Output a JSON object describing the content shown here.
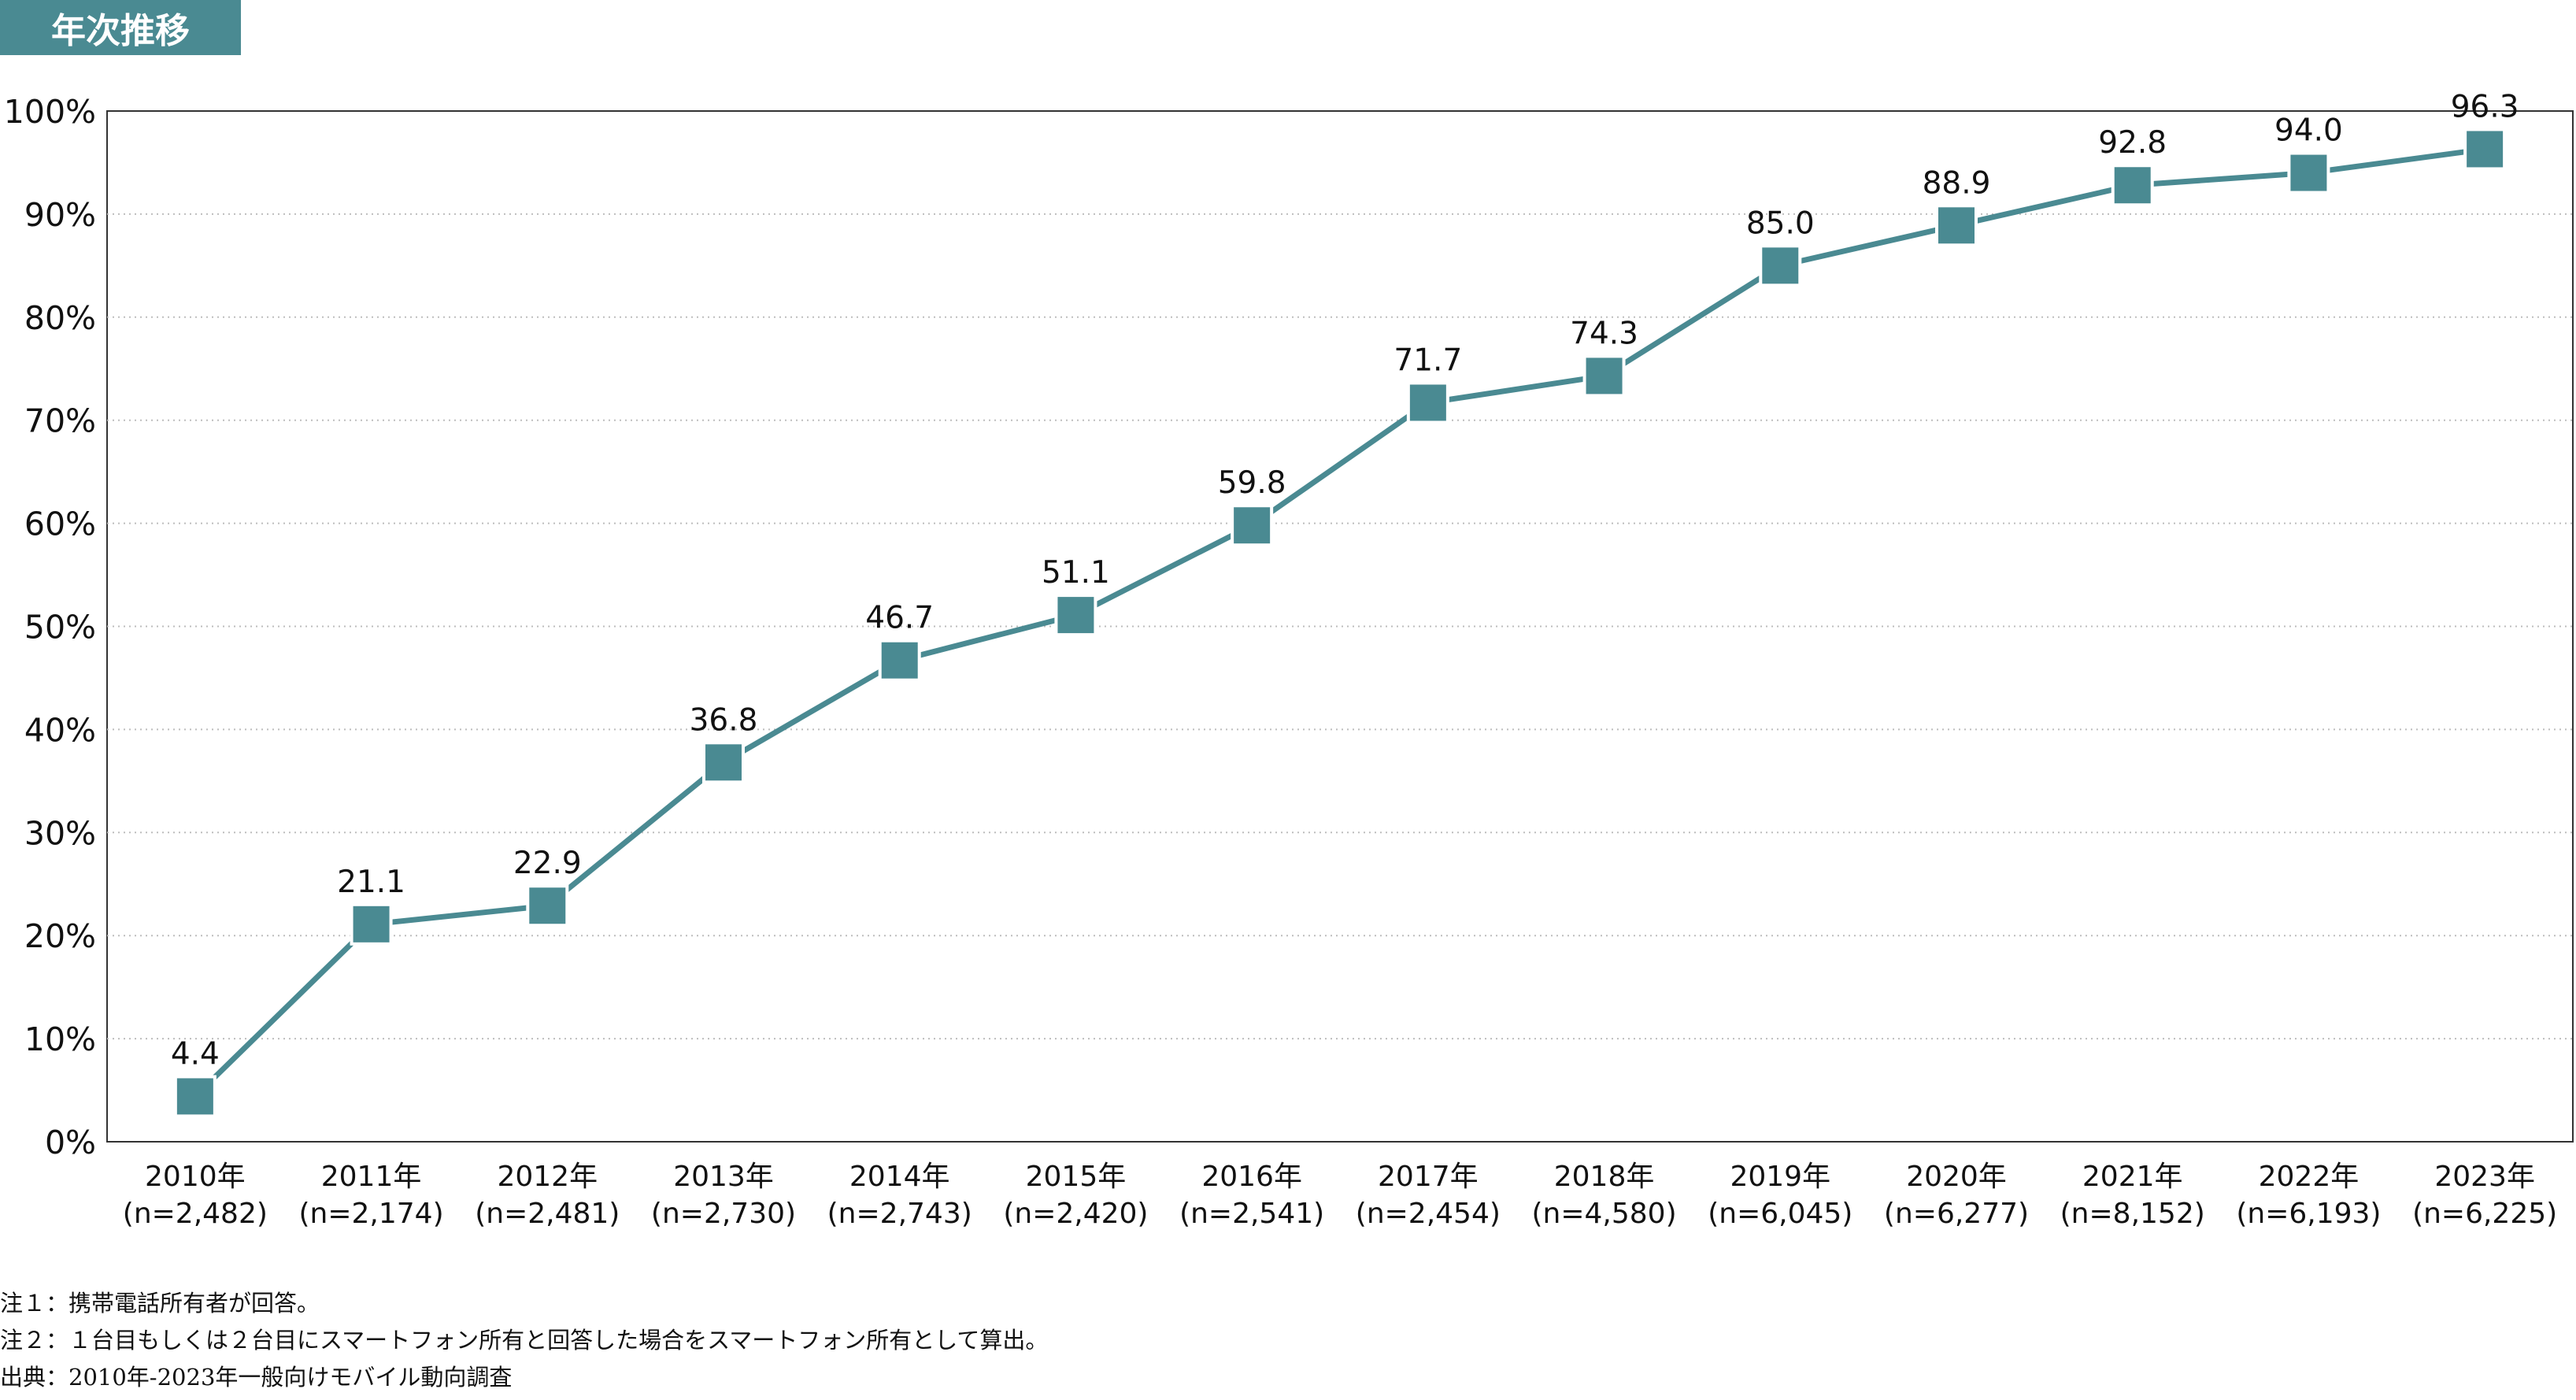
{
  "header": {
    "title": "年次推移"
  },
  "chart_data": {
    "type": "line",
    "categories": [
      "2010年",
      "2011年",
      "2012年",
      "2013年",
      "2014年",
      "2015年",
      "2016年",
      "2017年",
      "2018年",
      "2019年",
      "2020年",
      "2021年",
      "2022年",
      "2023年"
    ],
    "sample_sizes": [
      "(n=2,482)",
      "(n=2,174)",
      "(n=2,481)",
      "(n=2,730)",
      "(n=2,743)",
      "(n=2,420)",
      "(n=2,541)",
      "(n=2,454)",
      "(n=4,580)",
      "(n=6,045)",
      "(n=6,277)",
      "(n=8,152)",
      "(n=6,193)",
      "(n=6,225)"
    ],
    "values": [
      4.4,
      21.1,
      22.9,
      36.8,
      46.7,
      51.1,
      59.8,
      71.7,
      74.3,
      85.0,
      88.9,
      92.8,
      94.0,
      96.3
    ],
    "value_labels": [
      "4.4",
      "21.1",
      "22.9",
      "36.8",
      "46.7",
      "51.1",
      "59.8",
      "71.7",
      "74.3",
      "85.0",
      "88.9",
      "92.8",
      "94.0",
      "96.3"
    ],
    "ylim": [
      0,
      100
    ],
    "yticks": [
      "0%",
      "10%",
      "20%",
      "30%",
      "40%",
      "50%",
      "60%",
      "70%",
      "80%",
      "90%",
      "100%"
    ],
    "grid": "horizontal dotted",
    "line_color": "#4a8a92",
    "marker": "square"
  },
  "notes": [
    "注１：携帯電話所有者が回答。",
    "注２：１台目もしくは２台目にスマートフォン所有と回答した場合をスマートフォン所有として算出。",
    "出典：2010年-2023年一般向けモバイル動向調査"
  ]
}
